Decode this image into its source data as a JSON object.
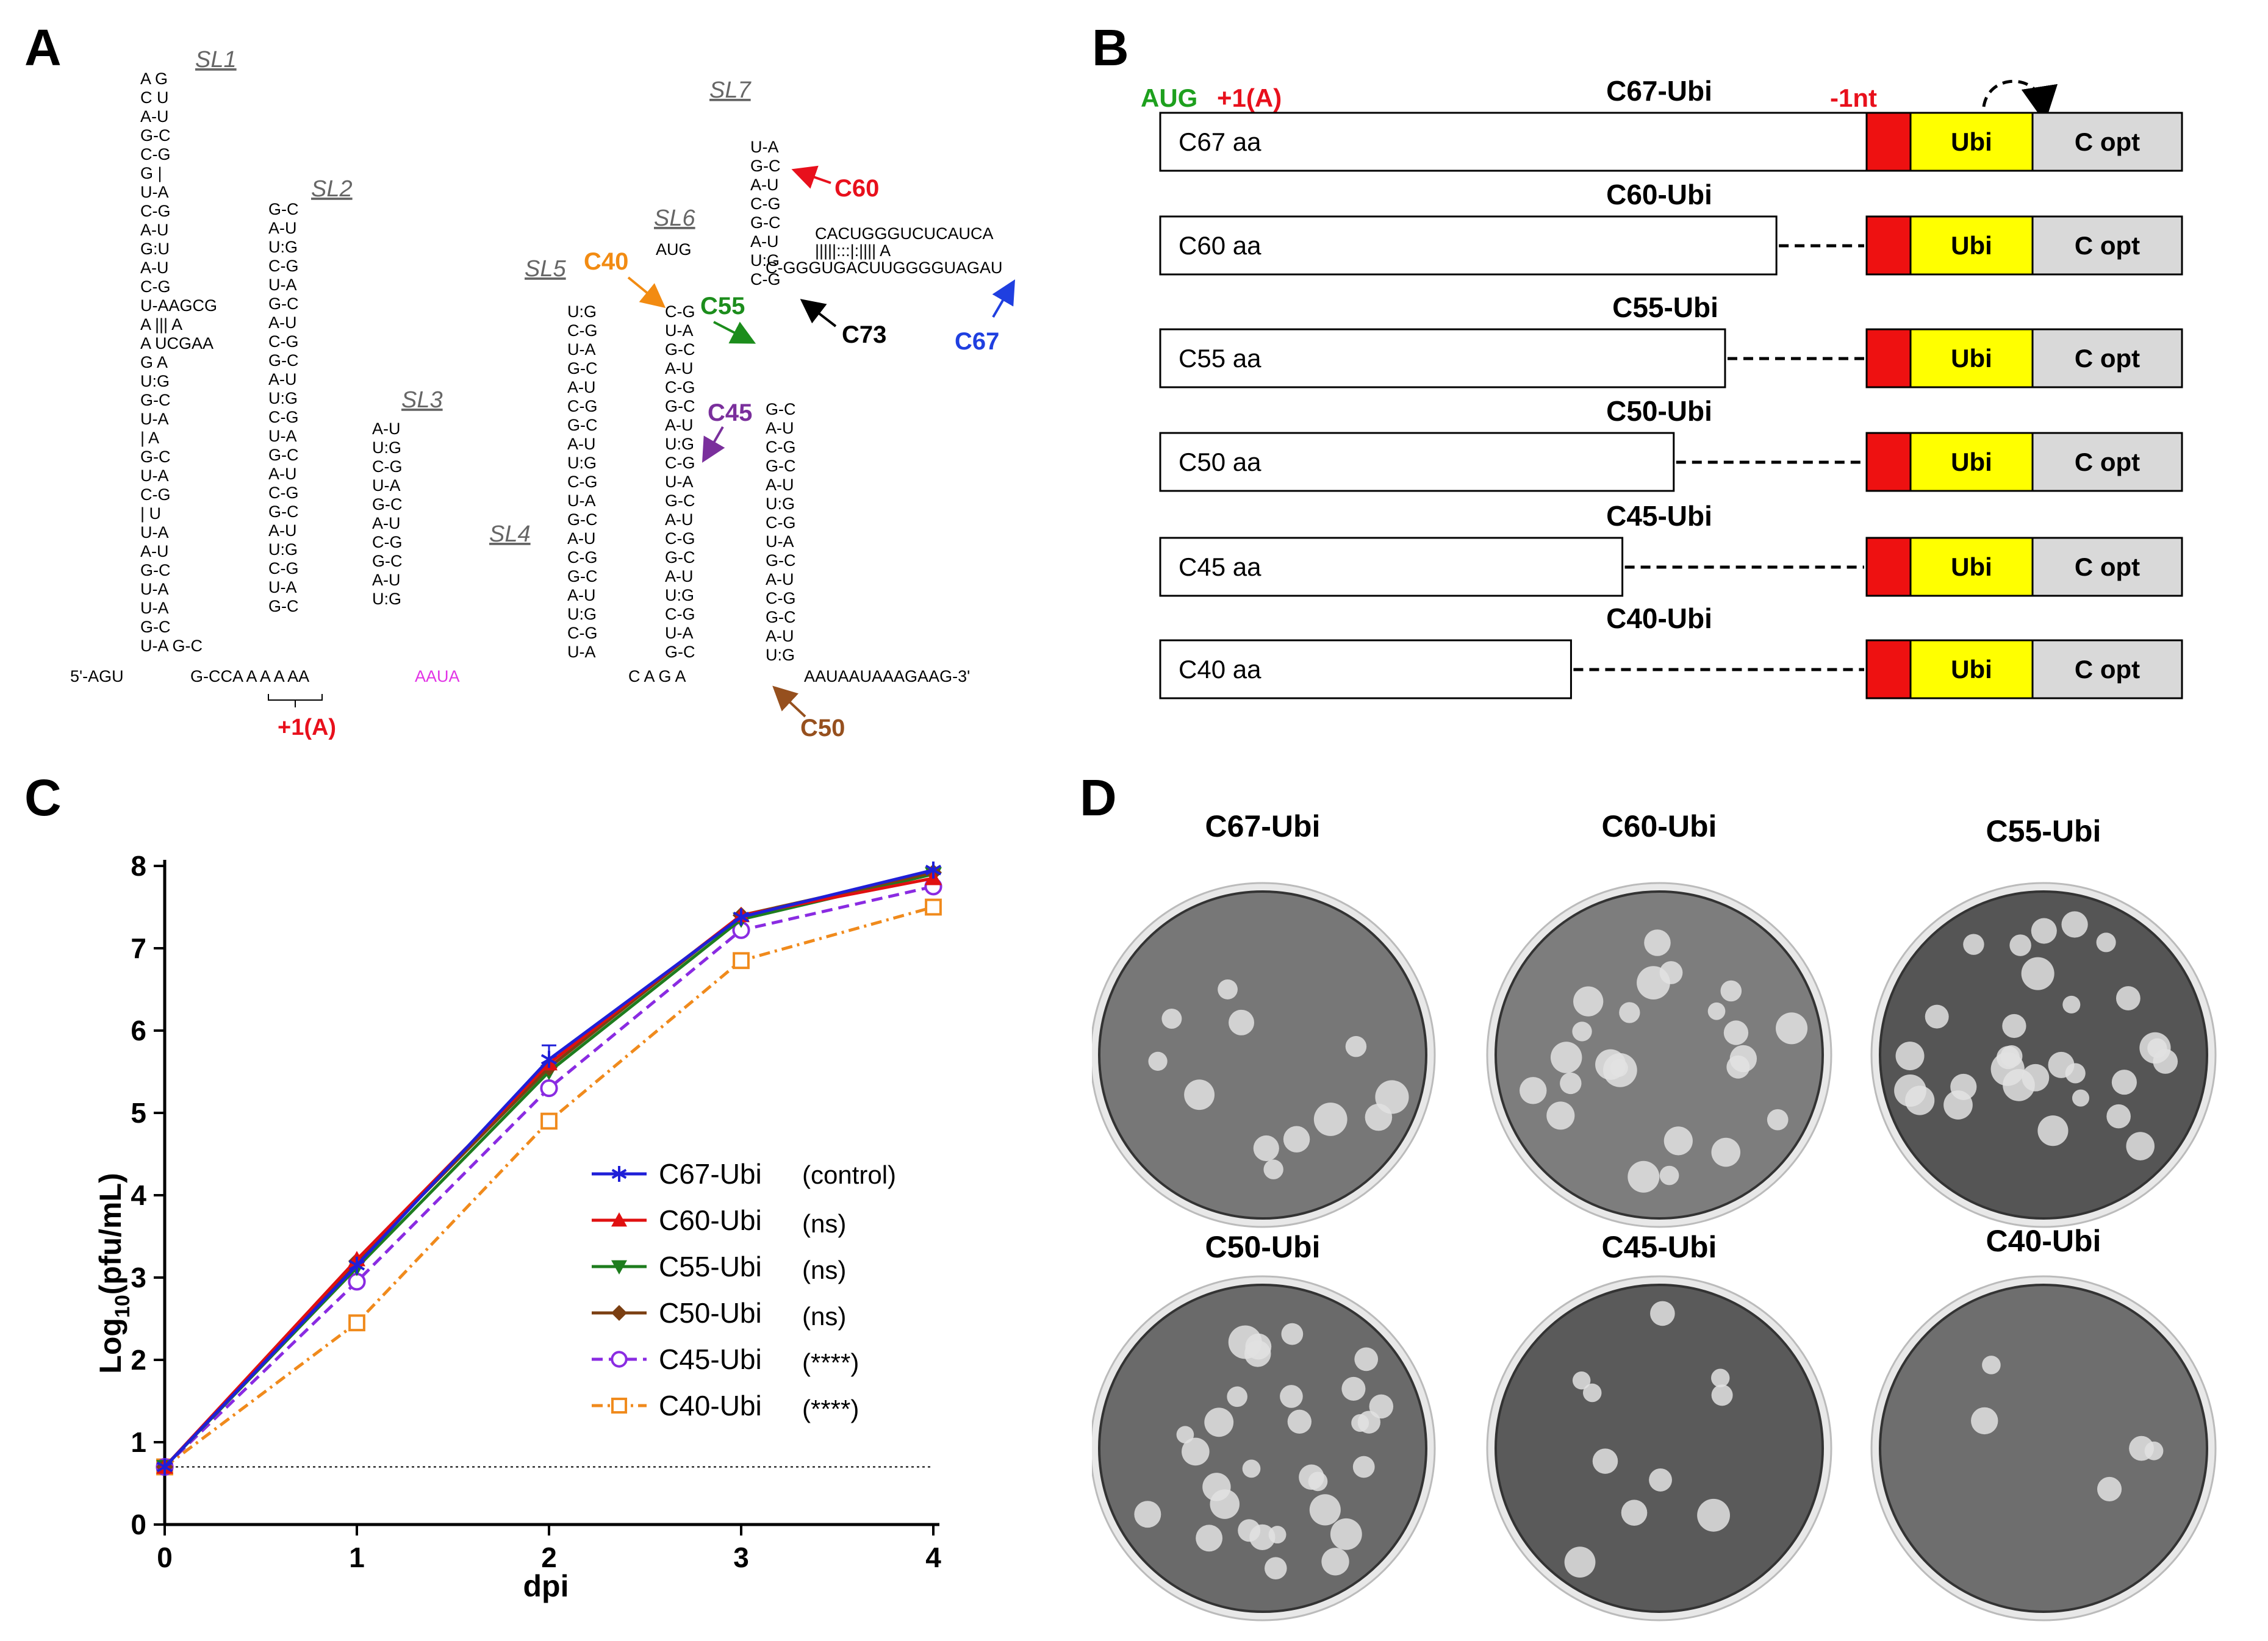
{
  "panels": {
    "a": "A",
    "b": "B",
    "c": "C",
    "d": "D"
  },
  "panel_a": {
    "stem_loops": [
      "SL1",
      "SL2",
      "SL3",
      "SL4",
      "SL5",
      "SL6",
      "SL7"
    ],
    "sequence_rows": [
      "A G",
      "C   U",
      "A-U",
      "G-C",
      "C-G",
      "G |",
      "U-A",
      "C-G",
      "A-U",
      "G:U",
      "A-U",
      "C-G",
      "U-AAGCG",
      "A   ||| A",
      "A   UCGAA",
      "G  A",
      "U:G",
      "G-C",
      "U-A",
      "| A",
      "G-C",
      "U-A",
      "C-G",
      "| U",
      "U-A",
      "A-U",
      "G-C",
      "U-A",
      "U-A",
      "G-C",
      "U-A G-C"
    ],
    "five_prime": "5'-AGU",
    "five_prime_cont": "G-CCA A A A AA",
    "pink_insert": "AAUA",
    "three_prime_row": "C A      G A",
    "three_prime": "AAUAAUAAAGAAG-3'",
    "aug_label": "AUG",
    "cyclization_top": "CACUGGGUCUCAUCA",
    "cyclization_pairs": "|||||:::|:|||| A",
    "cyclization_bottom": "C-GGGUGACUUGGGGUAGAU",
    "plus1": "+1(A)",
    "markers": [
      {
        "label": "C60",
        "color": "#e8101c"
      },
      {
        "label": "C40",
        "color": "#f28b12"
      },
      {
        "label": "C55",
        "color": "#1c8d1c"
      },
      {
        "label": "C73",
        "color": "#000000"
      },
      {
        "label": "C67",
        "color": "#1f3fe0"
      },
      {
        "label": "C45",
        "color": "#7a2f9c"
      },
      {
        "label": "C50",
        "color": "#96501e"
      }
    ]
  },
  "panel_b": {
    "aug": "AUG",
    "plus1": "+1(A)",
    "minus1": "-1nt",
    "constructs": [
      {
        "title": "C67-Ubi",
        "label": "C67 aa",
        "aa": 67
      },
      {
        "title": "C60-Ubi",
        "label": "C60 aa",
        "aa": 60
      },
      {
        "title": "C55-Ubi",
        "label": "C55 aa",
        "aa": 55
      },
      {
        "title": "C50-Ubi",
        "label": "C50 aa",
        "aa": 50
      },
      {
        "title": "C45-Ubi",
        "label": "C45 aa",
        "aa": 45
      },
      {
        "title": "C40-Ubi",
        "label": "C40 aa",
        "aa": 40
      }
    ],
    "ubi": "Ubi",
    "copt": "C opt",
    "colors": {
      "frameshift": "#ee1111",
      "ubi": "#ffff00",
      "copt": "#d9d9d9"
    }
  },
  "chart_data": {
    "type": "line",
    "title": "",
    "xlabel": "dpi",
    "ylabel": "Log10(pfu/mL)",
    "ylabel_base": "Log",
    "ylabel_sub": "10",
    "ylabel_rest": "(pfu/mL)",
    "x": [
      0,
      1,
      2,
      3,
      4
    ],
    "xlim": [
      0,
      4
    ],
    "ylim": [
      0,
      8
    ],
    "x_ticks": [
      "0",
      "1",
      "2",
      "3",
      "4"
    ],
    "y_ticks": [
      "0",
      "1",
      "2",
      "3",
      "4",
      "5",
      "6",
      "7",
      "8"
    ],
    "detection_limit": 0.7,
    "legend_position": "bottom-right",
    "series": [
      {
        "name": "C67-Ubi",
        "note": "(control)",
        "color": "#1f1fd8",
        "marker": "star",
        "dash": "solid",
        "values": [
          0.7,
          3.15,
          5.65,
          7.38,
          7.95
        ]
      },
      {
        "name": "C60-Ubi",
        "note": "(ns)",
        "color": "#e01010",
        "marker": "triangle-up",
        "dash": "solid",
        "values": [
          0.7,
          3.22,
          5.6,
          7.4,
          7.85
        ]
      },
      {
        "name": "C55-Ubi",
        "note": "(ns)",
        "color": "#1e7d1e",
        "marker": "triangle-down",
        "dash": "solid",
        "values": [
          0.7,
          3.12,
          5.5,
          7.35,
          7.9
        ]
      },
      {
        "name": "C50-Ubi",
        "note": "(ns)",
        "color": "#7b3f12",
        "marker": "diamond",
        "dash": "solid",
        "values": [
          0.7,
          3.2,
          5.55,
          7.4,
          7.92
        ]
      },
      {
        "name": "C45-Ubi",
        "note": "(****)",
        "color": "#8a2be2",
        "marker": "circle-open",
        "dash": "dashed",
        "values": [
          0.7,
          2.95,
          5.3,
          7.22,
          7.75
        ]
      },
      {
        "name": "C40-Ubi",
        "note": "(****)",
        "color": "#f08a1c",
        "marker": "square-open",
        "dash": "dashdot",
        "values": [
          0.7,
          2.45,
          4.9,
          6.85,
          7.5
        ]
      }
    ]
  },
  "panel_d": {
    "plates": [
      {
        "title": "C67-Ubi",
        "plaques": 12
      },
      {
        "title": "C60-Ubi",
        "plaques": 24
      },
      {
        "title": "C55-Ubi",
        "plaques": 30
      },
      {
        "title": "C50-Ubi",
        "plaques": 30
      },
      {
        "title": "C45-Ubi",
        "plaques": 10
      },
      {
        "title": "C40-Ubi",
        "plaques": 5
      }
    ]
  }
}
